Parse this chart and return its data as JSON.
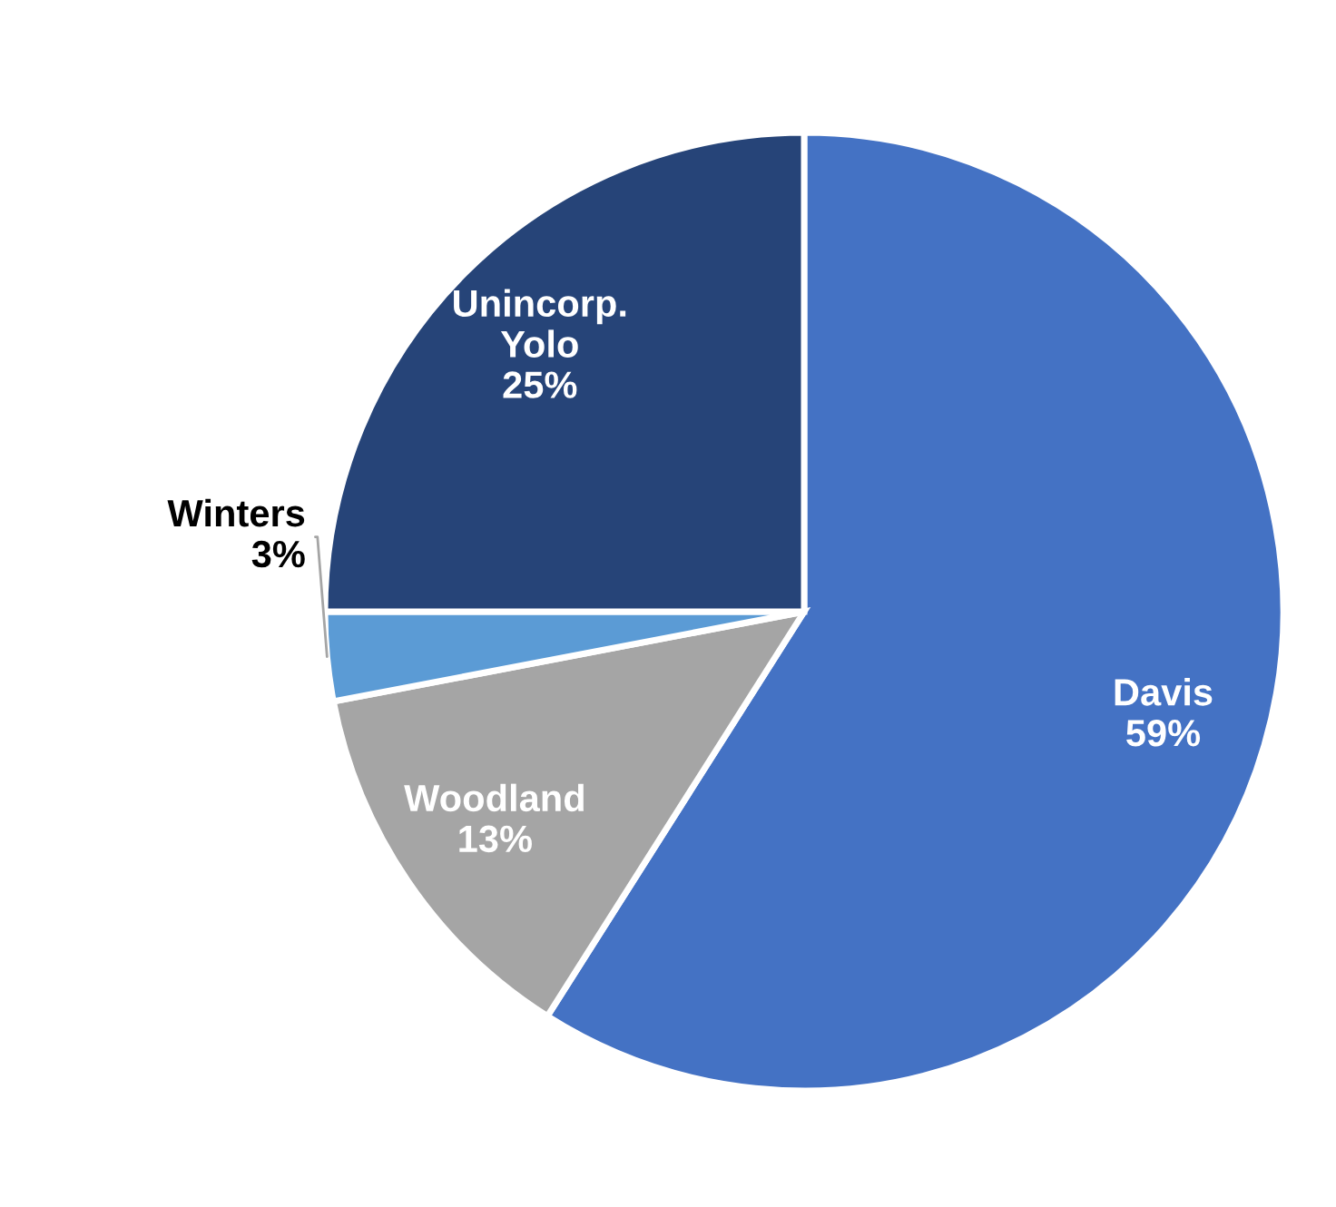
{
  "chart_data": {
    "type": "pie",
    "categories": [
      "Davis",
      "Woodland",
      "Winters",
      "Unincorp.\nYolo"
    ],
    "values": [
      59,
      13,
      3,
      25
    ],
    "value_labels": [
      "59%",
      "13%",
      "3%",
      "25%"
    ],
    "colors": [
      "#4472c4",
      "#a5a5a5",
      "#5b9bd5",
      "#264478"
    ]
  }
}
